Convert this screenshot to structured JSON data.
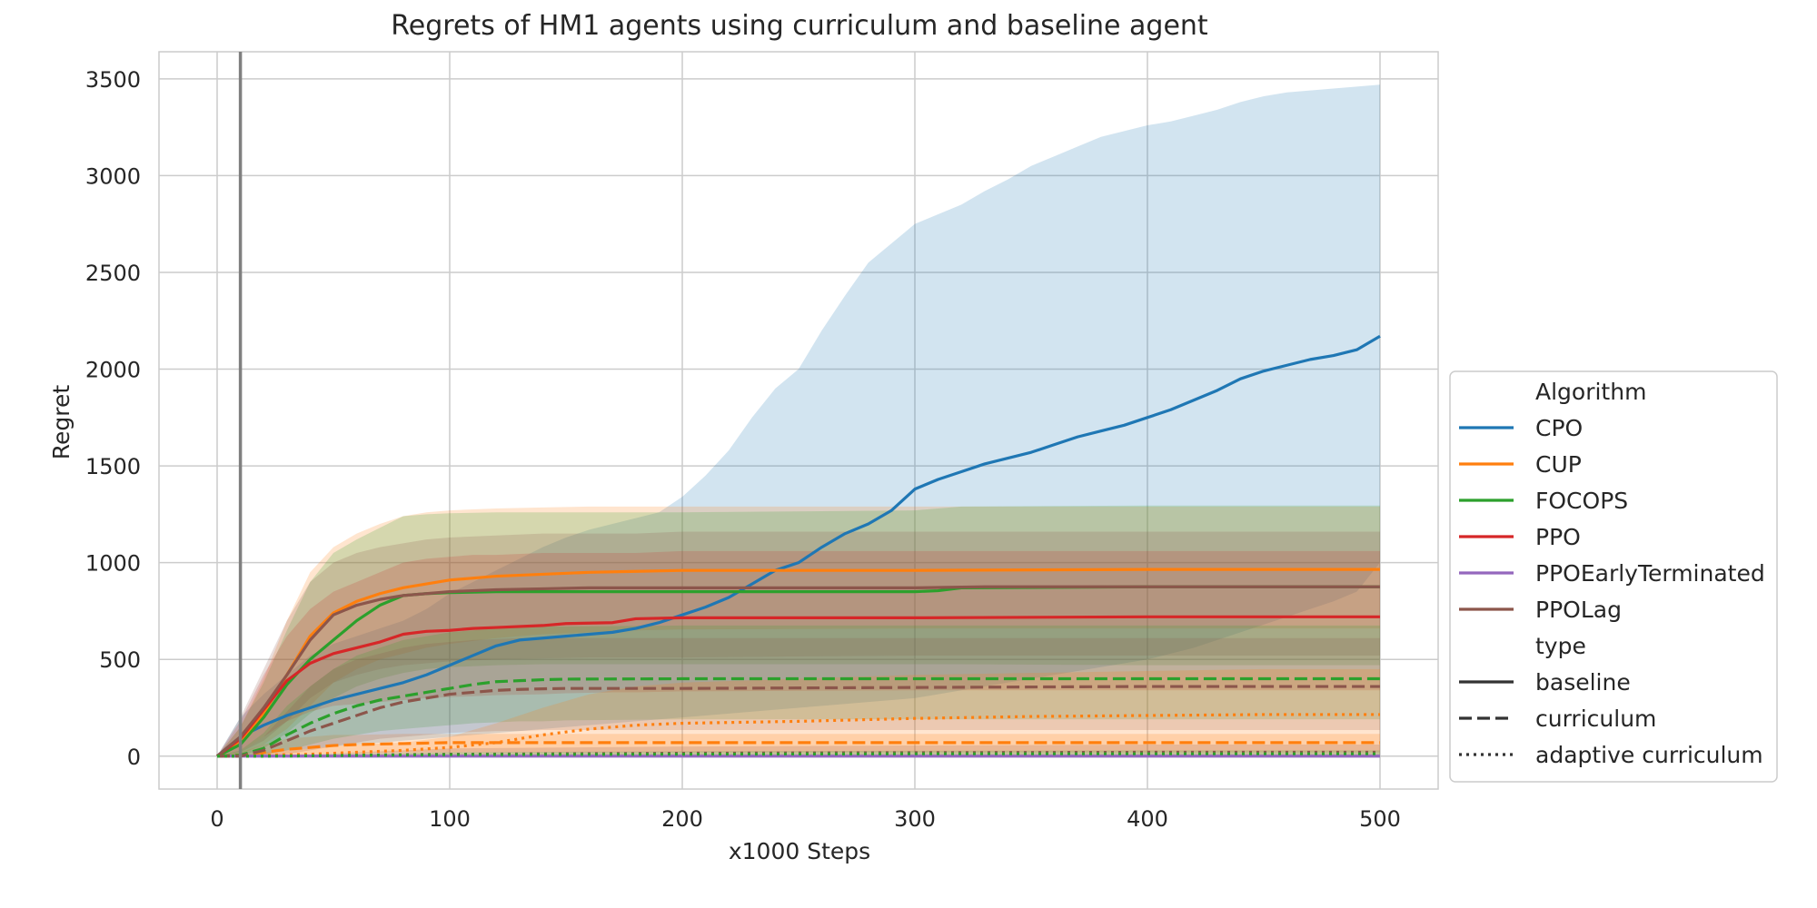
{
  "chart_data": {
    "type": "line",
    "title": "Regrets of HM1 agents using curriculum and baseline agent",
    "xlabel": "x1000 Steps",
    "ylabel": "Regret",
    "xlim": [
      -25,
      525
    ],
    "ylim": [
      -170,
      3640
    ],
    "xticks": [
      0,
      100,
      200,
      300,
      400,
      500
    ],
    "yticks": [
      0,
      500,
      1000,
      1500,
      2000,
      2500,
      3000,
      3500
    ],
    "grid": true,
    "vertical_marker_x": 10,
    "legend_placement": "right, outside",
    "legend": {
      "hue_title": "Algorithm",
      "style_title": "type",
      "algorithms": [
        {
          "name": "CPO",
          "color": "#1f77b4"
        },
        {
          "name": "CUP",
          "color": "#ff7f0e"
        },
        {
          "name": "FOCOPS",
          "color": "#2ca02c"
        },
        {
          "name": "PPO",
          "color": "#d62728"
        },
        {
          "name": "PPOEarlyTerminated",
          "color": "#9467bd"
        },
        {
          "name": "PPOLag",
          "color": "#8c564b"
        }
      ],
      "types": [
        {
          "name": "baseline",
          "dash": "solid"
        },
        {
          "name": "curriculum",
          "dash": "dashed"
        },
        {
          "name": "adaptive curriculum",
          "dash": "dotted"
        }
      ]
    },
    "series": [
      {
        "algorithm": "CPO",
        "type": "baseline",
        "x": [
          0,
          10,
          20,
          30,
          40,
          50,
          60,
          70,
          80,
          90,
          100,
          110,
          120,
          130,
          140,
          150,
          160,
          170,
          180,
          190,
          200,
          210,
          220,
          230,
          240,
          250,
          260,
          270,
          280,
          290,
          300,
          310,
          320,
          330,
          340,
          350,
          360,
          370,
          380,
          390,
          400,
          410,
          420,
          430,
          440,
          450,
          460,
          470,
          480,
          490,
          500
        ],
        "y": [
          0,
          100,
          160,
          210,
          250,
          290,
          320,
          350,
          380,
          420,
          470,
          520,
          570,
          600,
          610,
          620,
          630,
          640,
          660,
          690,
          730,
          770,
          820,
          890,
          960,
          1000,
          1080,
          1150,
          1200,
          1270,
          1380,
          1430,
          1470,
          1510,
          1540,
          1570,
          1610,
          1650,
          1680,
          1710,
          1750,
          1790,
          1840,
          1890,
          1950,
          1990,
          2020,
          2050,
          2070,
          2100,
          2170
        ],
        "lower": [
          0,
          0,
          10,
          30,
          40,
          50,
          60,
          70,
          80,
          90,
          100,
          110,
          120,
          130,
          140,
          150,
          160,
          170,
          180,
          190,
          200,
          210,
          220,
          230,
          240,
          250,
          260,
          270,
          280,
          290,
          300,
          320,
          340,
          360,
          380,
          400,
          420,
          440,
          460,
          480,
          500,
          530,
          560,
          600,
          640,
          680,
          720,
          760,
          800,
          850,
          1000
        ],
        "upper": [
          0,
          200,
          320,
          420,
          520,
          580,
          620,
          660,
          700,
          760,
          840,
          900,
          960,
          1020,
          1080,
          1130,
          1170,
          1200,
          1230,
          1260,
          1340,
          1450,
          1580,
          1750,
          1900,
          2000,
          2200,
          2380,
          2550,
          2650,
          2750,
          2800,
          2850,
          2920,
          2980,
          3050,
          3100,
          3150,
          3200,
          3230,
          3260,
          3280,
          3310,
          3340,
          3380,
          3410,
          3430,
          3440,
          3450,
          3460,
          3470
        ]
      },
      {
        "algorithm": "CUP",
        "type": "baseline",
        "x": [
          0,
          10,
          20,
          30,
          40,
          50,
          60,
          70,
          80,
          90,
          100,
          120,
          140,
          160,
          180,
          200,
          300,
          400,
          500
        ],
        "y": [
          0,
          80,
          220,
          420,
          620,
          740,
          800,
          840,
          870,
          890,
          910,
          930,
          940,
          950,
          955,
          960,
          960,
          965,
          965
        ],
        "lower": [
          0,
          10,
          60,
          140,
          260,
          380,
          450,
          500,
          530,
          560,
          580,
          610,
          630,
          640,
          650,
          655,
          660,
          660,
          660
        ],
        "upper": [
          0,
          150,
          400,
          700,
          950,
          1080,
          1150,
          1200,
          1240,
          1260,
          1270,
          1280,
          1285,
          1290,
          1290,
          1290,
          1290,
          1290,
          1290
        ]
      },
      {
        "algorithm": "FOCOPS",
        "type": "baseline",
        "x": [
          0,
          10,
          20,
          30,
          40,
          50,
          60,
          70,
          80,
          90,
          100,
          120,
          140,
          160,
          180,
          200,
          300,
          310,
          320,
          400,
          500
        ],
        "y": [
          0,
          60,
          200,
          370,
          500,
          600,
          700,
          780,
          830,
          840,
          845,
          850,
          850,
          850,
          850,
          850,
          850,
          855,
          870,
          875,
          875
        ],
        "lower": [
          0,
          0,
          40,
          120,
          220,
          300,
          360,
          400,
          430,
          450,
          460,
          470,
          475,
          475,
          475,
          475,
          475,
          475,
          475,
          470,
          470
        ],
        "upper": [
          0,
          150,
          380,
          650,
          900,
          1050,
          1120,
          1180,
          1240,
          1250,
          1255,
          1260,
          1260,
          1260,
          1260,
          1260,
          1270,
          1280,
          1290,
          1295,
          1295
        ]
      },
      {
        "algorithm": "PPO",
        "type": "baseline",
        "x": [
          0,
          10,
          20,
          30,
          40,
          50,
          60,
          70,
          80,
          90,
          100,
          110,
          120,
          140,
          150,
          170,
          180,
          200,
          300,
          400,
          500
        ],
        "y": [
          0,
          90,
          240,
          390,
          480,
          530,
          560,
          590,
          630,
          645,
          650,
          660,
          665,
          675,
          685,
          690,
          710,
          715,
          715,
          720,
          720
        ],
        "lower": [
          0,
          20,
          100,
          180,
          230,
          260,
          270,
          280,
          290,
          300,
          305,
          310,
          315,
          320,
          325,
          330,
          330,
          335,
          340,
          340,
          340
        ],
        "upper": [
          0,
          180,
          420,
          620,
          760,
          850,
          900,
          950,
          1000,
          1020,
          1030,
          1040,
          1040,
          1050,
          1050,
          1050,
          1050,
          1060,
          1060,
          1060,
          1060
        ]
      },
      {
        "algorithm": "PPOEarlyTerminated",
        "type": "baseline",
        "x": [
          0,
          100,
          200,
          300,
          400,
          500
        ],
        "y": [
          0,
          0,
          0,
          0,
          0,
          0
        ],
        "lower": [
          0,
          0,
          0,
          0,
          0,
          0
        ],
        "upper": [
          0,
          2,
          2,
          2,
          2,
          2
        ]
      },
      {
        "algorithm": "PPOLag",
        "type": "baseline",
        "x": [
          0,
          10,
          20,
          30,
          40,
          50,
          60,
          70,
          80,
          90,
          100,
          120,
          140,
          160,
          180,
          200,
          300,
          330,
          400,
          500
        ],
        "y": [
          0,
          100,
          250,
          420,
          600,
          730,
          780,
          810,
          830,
          840,
          850,
          860,
          865,
          870,
          870,
          870,
          870,
          875,
          875,
          875
        ],
        "lower": [
          0,
          20,
          80,
          180,
          300,
          380,
          420,
          450,
          470,
          480,
          490,
          500,
          505,
          510,
          510,
          510,
          520,
          520,
          520,
          520
        ],
        "upper": [
          0,
          200,
          450,
          700,
          900,
          1000,
          1050,
          1080,
          1100,
          1120,
          1130,
          1140,
          1150,
          1150,
          1150,
          1160,
          1160,
          1160,
          1160,
          1160
        ]
      },
      {
        "algorithm": "CUP",
        "type": "curriculum",
        "x": [
          0,
          10,
          20,
          30,
          40,
          50,
          60,
          80,
          100,
          140,
          200,
          300,
          400,
          500
        ],
        "y": [
          0,
          5,
          20,
          35,
          45,
          55,
          60,
          65,
          70,
          70,
          70,
          70,
          70,
          70
        ],
        "lower": [
          0,
          0,
          0,
          5,
          10,
          15,
          15,
          20,
          20,
          20,
          20,
          20,
          20,
          20
        ],
        "upper": [
          0,
          20,
          60,
          90,
          100,
          110,
          110,
          115,
          115,
          115,
          115,
          115,
          115,
          115
        ]
      },
      {
        "algorithm": "FOCOPS",
        "type": "curriculum",
        "x": [
          0,
          10,
          20,
          30,
          40,
          50,
          60,
          70,
          80,
          90,
          100,
          110,
          120,
          130,
          140,
          150,
          200,
          300,
          400,
          500
        ],
        "y": [
          0,
          5,
          40,
          110,
          170,
          220,
          260,
          290,
          310,
          330,
          350,
          370,
          385,
          390,
          395,
          398,
          400,
          400,
          400,
          400
        ],
        "lower": [
          0,
          0,
          5,
          30,
          60,
          90,
          110,
          130,
          140,
          150,
          160,
          170,
          175,
          180,
          180,
          185,
          190,
          190,
          190,
          190
        ],
        "upper": [
          0,
          30,
          120,
          260,
          360,
          450,
          520,
          560,
          600,
          620,
          640,
          650,
          660,
          665,
          670,
          670,
          675,
          675,
          675,
          675
        ]
      },
      {
        "algorithm": "PPOLag",
        "type": "curriculum",
        "x": [
          0,
          10,
          20,
          30,
          40,
          50,
          60,
          70,
          80,
          90,
          100,
          110,
          120,
          130,
          140,
          150,
          200,
          300,
          400,
          500
        ],
        "y": [
          0,
          0,
          30,
          80,
          130,
          170,
          210,
          250,
          280,
          300,
          320,
          330,
          340,
          345,
          348,
          350,
          350,
          355,
          360,
          360
        ],
        "lower": [
          0,
          0,
          0,
          10,
          30,
          50,
          70,
          90,
          100,
          110,
          120,
          125,
          130,
          130,
          135,
          135,
          135,
          135,
          135,
          135
        ],
        "upper": [
          0,
          20,
          100,
          230,
          360,
          450,
          500,
          530,
          560,
          580,
          590,
          600,
          605,
          610,
          610,
          610,
          610,
          610,
          610,
          610
        ]
      },
      {
        "algorithm": "CUP",
        "type": "adaptive curriculum",
        "x": [
          0,
          10,
          20,
          40,
          60,
          80,
          100,
          120,
          140,
          160,
          180,
          200,
          250,
          300,
          350,
          400,
          450,
          500
        ],
        "y": [
          0,
          0,
          5,
          10,
          20,
          30,
          45,
          70,
          110,
          140,
          160,
          170,
          180,
          195,
          205,
          210,
          215,
          215
        ],
        "lower": [
          0,
          0,
          0,
          0,
          0,
          0,
          0,
          0,
          0,
          0,
          0,
          0,
          0,
          0,
          0,
          0,
          0,
          0
        ],
        "upper": [
          0,
          0,
          20,
          40,
          60,
          70,
          100,
          170,
          250,
          320,
          360,
          380,
          400,
          420,
          430,
          440,
          450,
          450
        ]
      },
      {
        "algorithm": "PPOLag",
        "type": "adaptive curriculum",
        "x": [
          0,
          20,
          40,
          60,
          80,
          100,
          200,
          300,
          400,
          500
        ],
        "y": [
          0,
          0,
          2,
          5,
          8,
          10,
          15,
          18,
          20,
          20
        ],
        "lower": [
          0,
          0,
          0,
          0,
          0,
          0,
          0,
          0,
          0,
          0
        ],
        "upper": [
          0,
          5,
          10,
          20,
          30,
          40,
          50,
          55,
          60,
          60
        ]
      },
      {
        "algorithm": "FOCOPS",
        "type": "adaptive curriculum",
        "x": [
          0,
          20,
          40,
          60,
          80,
          100,
          200,
          300,
          400,
          500
        ],
        "y": [
          0,
          0,
          2,
          4,
          6,
          8,
          10,
          12,
          12,
          12
        ],
        "lower": [
          0,
          0,
          0,
          0,
          0,
          0,
          0,
          0,
          0,
          0
        ],
        "upper": [
          0,
          4,
          8,
          12,
          16,
          20,
          25,
          28,
          30,
          30
        ]
      }
    ]
  }
}
